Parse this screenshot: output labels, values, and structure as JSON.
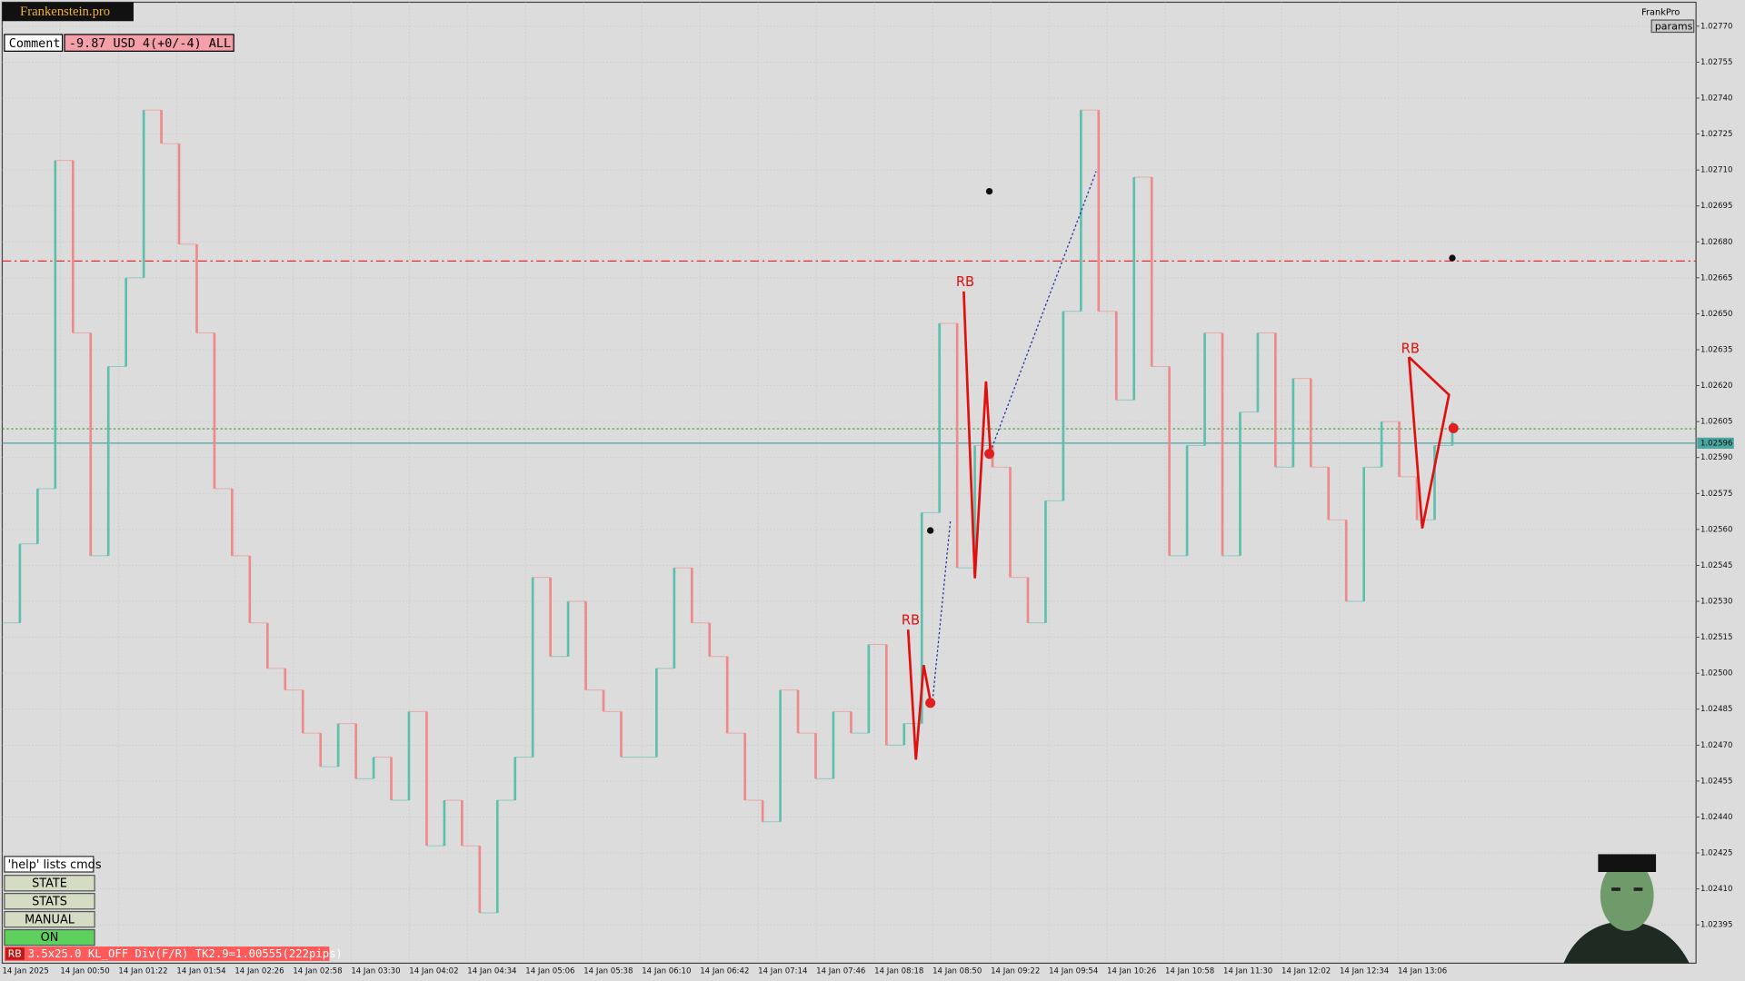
{
  "header": {
    "brand": "Frankenstein.pro",
    "user": "FrankPro",
    "params_button": "params"
  },
  "comment": {
    "label": "Comment",
    "text": "-9.87 USD 4(+0/-4) ALL"
  },
  "panel": {
    "help": "'help' lists cmds",
    "buttons": [
      "STATE",
      "STATS",
      "MANUAL",
      "ON"
    ]
  },
  "status": {
    "tag": "RB",
    "text": "3.5x25.0 KL_OFF Div(F/R) TK2.9=1.00555(222pips)"
  },
  "annotations": [
    "RB",
    "RB",
    "RB"
  ],
  "chart_data": {
    "type": "candlestick",
    "up_color": "#5fbfae",
    "down_color": "#ee8a8a",
    "ylim": [
      1.02379,
      1.0278
    ],
    "yticks": [
      {
        "value": 1.02395,
        "label": "1.02395"
      },
      {
        "value": 1.0241,
        "label": "1.02410"
      },
      {
        "value": 1.02425,
        "label": "1.02425"
      },
      {
        "value": 1.0244,
        "label": "1.02440"
      },
      {
        "value": 1.02455,
        "label": "1.02455"
      },
      {
        "value": 1.0247,
        "label": "1.02470"
      },
      {
        "value": 1.02485,
        "label": "1.02485"
      },
      {
        "value": 1.025,
        "label": "1.02500"
      },
      {
        "value": 1.02515,
        "label": "1.02515"
      },
      {
        "value": 1.0253,
        "label": "1.02530"
      },
      {
        "value": 1.02545,
        "label": "1.02545"
      },
      {
        "value": 1.0256,
        "label": "1.02560"
      },
      {
        "value": 1.02575,
        "label": "1.02575"
      },
      {
        "value": 1.0259,
        "label": "1.02590"
      },
      {
        "value": 1.02605,
        "label": "1.02605"
      },
      {
        "value": 1.0262,
        "label": "1.02620"
      },
      {
        "value": 1.02635,
        "label": "1.02635"
      },
      {
        "value": 1.0265,
        "label": "1.02650"
      },
      {
        "value": 1.02665,
        "label": "1.02665"
      },
      {
        "value": 1.0268,
        "label": "1.02680"
      },
      {
        "value": 1.02695,
        "label": "1.02695"
      },
      {
        "value": 1.0271,
        "label": "1.02710"
      },
      {
        "value": 1.02725,
        "label": "1.02725"
      },
      {
        "value": 1.0274,
        "label": "1.02740"
      },
      {
        "value": 1.02755,
        "label": "1.02755"
      },
      {
        "value": 1.0277,
        "label": "1.02770"
      }
    ],
    "time_labels": [
      "14 Jan 2025",
      "14 Jan 00:50",
      "14 Jan 01:22",
      "14 Jan 01:54",
      "14 Jan 02:26",
      "14 Jan 02:58",
      "14 Jan 03:30",
      "14 Jan 04:02",
      "14 Jan 04:34",
      "14 Jan 05:06",
      "14 Jan 05:38",
      "14 Jan 06:10",
      "14 Jan 06:42",
      "14 Jan 07:14",
      "14 Jan 07:46",
      "14 Jan 08:18",
      "14 Jan 08:50",
      "14 Jan 09:22",
      "14 Jan 09:54",
      "14 Jan 10:26",
      "14 Jan 10:58",
      "14 Jan 11:30",
      "14 Jan 12:02",
      "14 Jan 12:34",
      "14 Jan 13:06"
    ],
    "values": [
      1.02521,
      1.02554,
      1.02577,
      1.02714,
      1.02642,
      1.02549,
      1.02628,
      1.02665,
      1.02735,
      1.02721,
      1.02679,
      1.02642,
      1.02577,
      1.02549,
      1.02521,
      1.02502,
      1.02493,
      1.02475,
      1.02461,
      1.02479,
      1.02456,
      1.02465,
      1.02447,
      1.02484,
      1.02428,
      1.02447,
      1.02428,
      1.024,
      1.02447,
      1.02465,
      1.0254,
      1.02507,
      1.0253,
      1.02493,
      1.02484,
      1.02465,
      1.02465,
      1.02502,
      1.02544,
      1.02521,
      1.02507,
      1.02475,
      1.02447,
      1.02438,
      1.02493,
      1.02475,
      1.02456,
      1.02484,
      1.02475,
      1.02512,
      1.0247,
      1.02479,
      1.02567,
      1.02646,
      1.02544,
      1.02595,
      1.02586,
      1.0254,
      1.02521,
      1.02572,
      1.02651,
      1.02735,
      1.02651,
      1.02614,
      1.02707,
      1.02628,
      1.02549,
      1.02595,
      1.02642,
      1.02549,
      1.02609,
      1.02642,
      1.02586,
      1.02623,
      1.02586,
      1.02564,
      1.0253,
      1.02586,
      1.02605,
      1.02582,
      1.02564,
      1.02595,
      1.02605
    ],
    "current_price": 1.02596,
    "current_color": "#4aa6a0",
    "levels": [
      {
        "value": 1.02602,
        "color": "#3aa03a"
      },
      {
        "value": 1.02672,
        "color": "#e03030"
      }
    ],
    "grid": true
  }
}
